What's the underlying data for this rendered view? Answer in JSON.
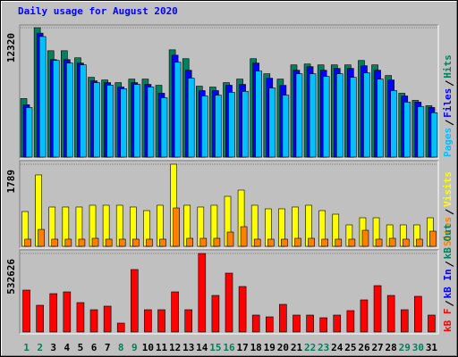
{
  "chart_data": {
    "type": "webalizer-daily",
    "title": "Daily usage for August 2020",
    "title_color": "#0000ff",
    "categories": [
      1,
      2,
      3,
      4,
      5,
      6,
      7,
      8,
      9,
      10,
      11,
      12,
      13,
      14,
      15,
      16,
      17,
      18,
      19,
      20,
      21,
      22,
      23,
      24,
      25,
      26,
      27,
      28,
      29,
      30,
      31
    ],
    "weekend_days": [
      1,
      2,
      8,
      9,
      15,
      16,
      22,
      23,
      29,
      30
    ],
    "weekend_color": "#00805c",
    "panels": [
      {
        "ylim": [
          0,
          12320
        ],
        "yticks": [
          12320
        ],
        "series": [
          {
            "name": "Pages",
            "color": "#00c0ff",
            "values": [
              4720,
              11476,
              9200,
              8950,
              8780,
              7090,
              6840,
              6500,
              6920,
              6670,
              5650,
              9030,
              7510,
              5820,
              5900,
              6160,
              6250,
              8190,
              6580,
              5900,
              7930,
              7930,
              7680,
              7930,
              7590,
              8020,
              7420,
              6330,
              5230,
              4800,
              4220
            ]
          },
          {
            "name": "Files",
            "color": "#0000ff",
            "values": [
              4980,
              11800,
              9280,
              9280,
              8950,
              7260,
              7090,
              6670,
              7090,
              6920,
              6080,
              9700,
              8270,
              6330,
              6330,
              6840,
              6920,
              8950,
              7510,
              6830,
              8270,
              8610,
              8270,
              8440,
              8440,
              8700,
              8270,
              7340,
              5820,
              5230,
              4720
            ]
          },
          {
            "name": "Hits",
            "color": "#00805c",
            "values": [
              5569,
              12320,
              10126,
              10126,
              9451,
              7595,
              7341,
              7088,
              7426,
              7426,
              6835,
              10210,
              9367,
              6751,
              6666,
              7088,
              7426,
              9367,
              7932,
              7426,
              8776,
              8860,
              8776,
              8776,
              8776,
              9198,
              8776,
              7764,
              6076,
              5401,
              4894
            ]
          }
        ]
      },
      {
        "ylim": [
          0,
          1789
        ],
        "yticks": [
          1789
        ],
        "series": [
          {
            "name": "Sites",
            "color": "#ff8000",
            "values": [
              156,
              369,
              156,
              156,
              156,
              175,
              156,
              156,
              156,
              156,
              156,
              836,
              175,
              175,
              175,
              311,
              428,
              156,
              156,
              156,
              175,
              175,
              156,
              156,
              156,
              350,
              156,
              175,
              156,
              156,
              330
            ]
          },
          {
            "name": "Visits",
            "color": "#ffff00",
            "values": [
              758,
              1556,
              856,
              856,
              856,
              895,
              895,
              895,
              856,
              778,
              895,
              1789,
              895,
              856,
              895,
              1089,
              1225,
              895,
              817,
              817,
              856,
              895,
              778,
              700,
              467,
              622,
              622,
              467,
              467,
              467,
              622
            ]
          }
        ]
      },
      {
        "ylim": [
          0,
          532626
        ],
        "yticks": [
          532626
        ],
        "series": [
          {
            "name": "kB F",
            "color": "#ff0000",
            "values": [
              284470,
              181550,
              260260,
              272370,
              199700,
              151310,
              175520,
              60530,
              423820,
              151310,
              151310,
              272370,
              151310,
              532626,
              248150,
              399470,
              308680,
              114990,
              102890,
              187630,
              114990,
              114990,
              96840,
              114990,
              145260,
              217860,
              314700,
              248150,
              151310,
              242100,
              114990
            ]
          }
        ],
        "legend_after": [
          {
            "name": "kB In",
            "color": "#0000ff"
          },
          {
            "name": "kB Out",
            "color": "#00805c"
          }
        ]
      }
    ]
  }
}
